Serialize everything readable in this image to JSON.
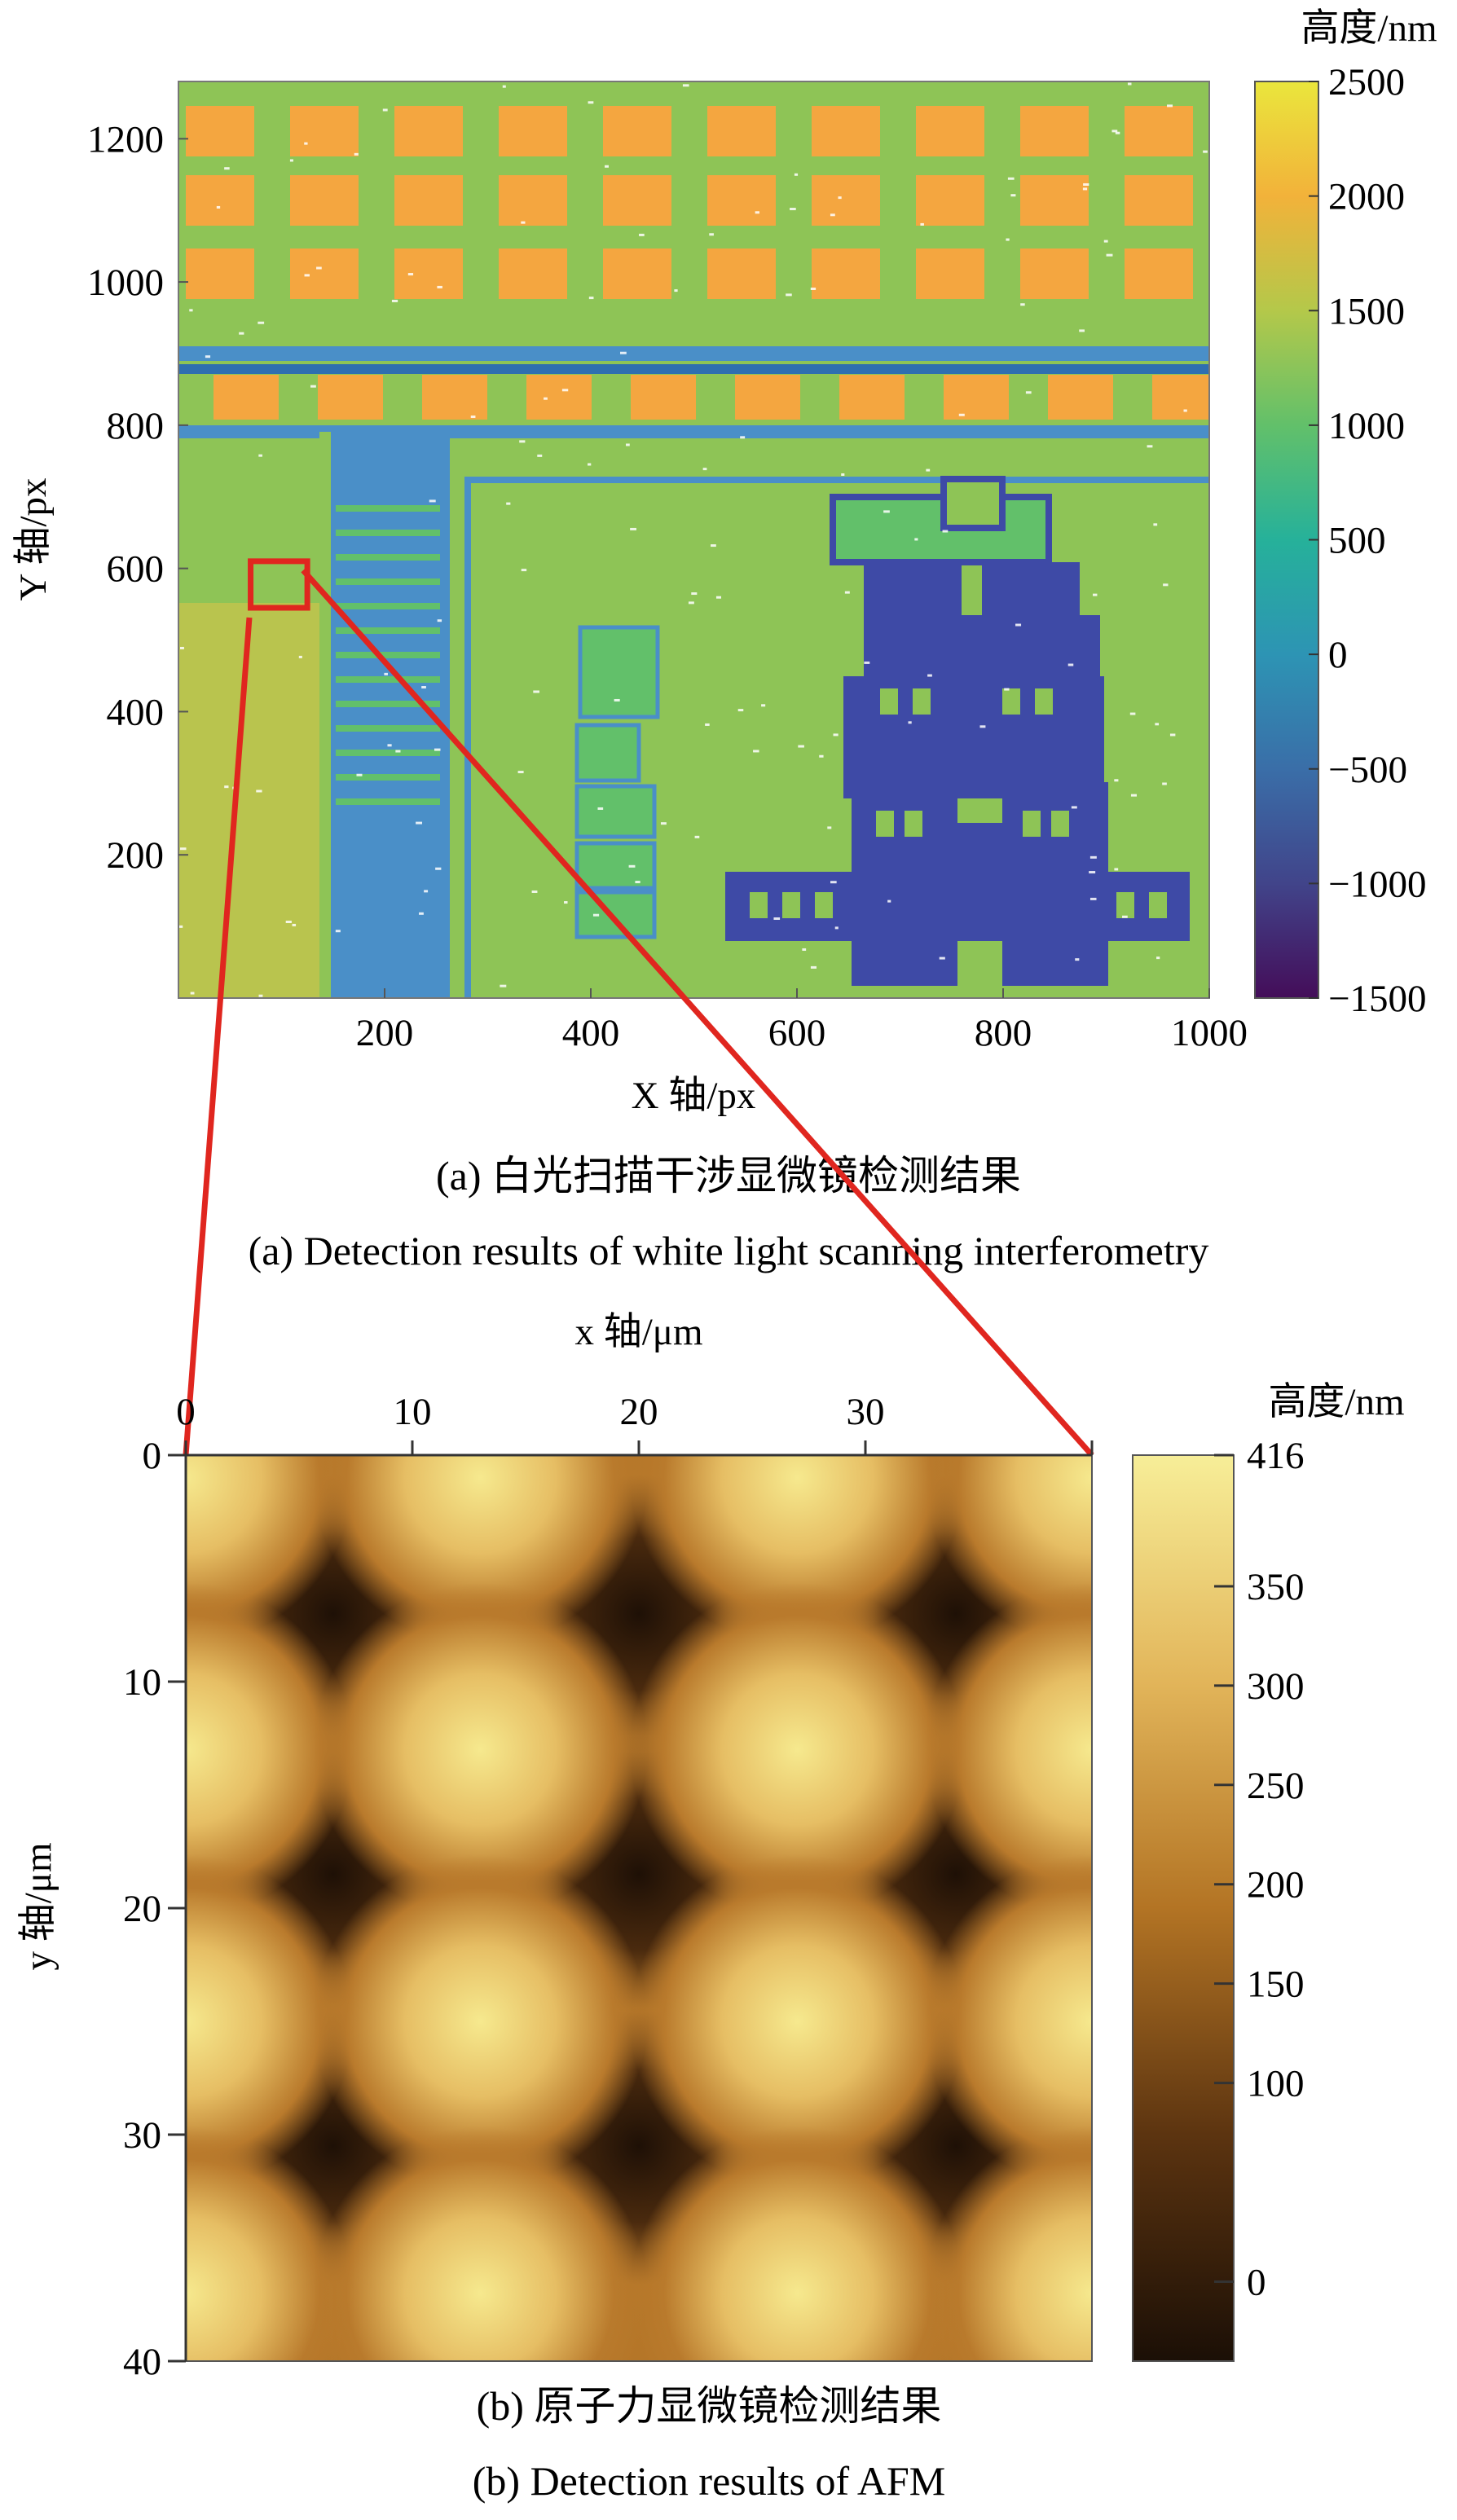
{
  "panel_a": {
    "caption_cn": "(a) 白光扫描干涉显微镜检测结果",
    "caption_en": "(a) Detection results of white light scanning interferometry"
  },
  "panel_b": {
    "caption_cn": "(b) 原子力显微镜检测结果",
    "caption_en": "(b) Detection results of AFM"
  },
  "colors": {
    "zoom_marker": "#e0261f",
    "pad_orange": "#f4a640",
    "substrate_green": "#8ec456",
    "trace_blue": "#4a8fc8",
    "device_purple": "#3e4aa6",
    "afm_dark": "#2a170a",
    "afm_light": "#f7e88a"
  },
  "chart_data": [
    {
      "type": "heatmap",
      "title": "",
      "xlabel": "X 轴/px",
      "ylabel": "Y 轴/px",
      "xlim": [
        0,
        1000
      ],
      "ylim": [
        0,
        1280
      ],
      "xticks": [
        200,
        400,
        600,
        800,
        1000
      ],
      "yticks": [
        200,
        400,
        600,
        800,
        1000,
        1200
      ],
      "colorbar": {
        "label": "高度/nm",
        "min": -1500,
        "max": 2500,
        "ticks": [
          2500,
          2000,
          1500,
          1000,
          500,
          0,
          -500,
          -1000,
          -1500
        ],
        "colormap": "viridis"
      },
      "zoom_box": {
        "x": [
          70,
          125
        ],
        "y": [
          545,
          610
        ]
      }
    },
    {
      "type": "heatmap",
      "title": "",
      "xlabel": "x 轴/μm",
      "ylabel": "y 轴/μm",
      "xlim": [
        0,
        40
      ],
      "ylim": [
        0,
        40
      ],
      "xticks": [
        0,
        10,
        20,
        30
      ],
      "yticks": [
        0,
        10,
        20,
        30,
        40
      ],
      "colorbar": {
        "label": "高度/nm",
        "min": -40,
        "max": 416,
        "ticks": [
          416,
          350,
          300,
          250,
          200,
          150,
          100,
          0
        ],
        "colormap": "afmhot"
      }
    }
  ]
}
